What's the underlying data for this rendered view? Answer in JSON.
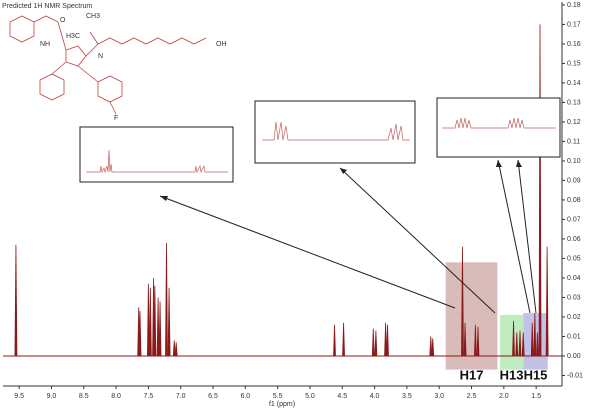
{
  "chart_data": {
    "type": "spectrum",
    "title": "Predicted 1H NMR Spectrum",
    "x_label": "f1 (ppm)",
    "color": "#8b1a1a",
    "xlim": [
      9.75,
      1.1
    ],
    "ylim": [
      -0.0154,
      0.1815
    ],
    "xticks": [
      9.5,
      {
        "value": 9,
        "label": "9.0"
      },
      8.5,
      {
        "value": 8,
        "label": "8.0"
      },
      7.5,
      {
        "value": 7,
        "label": "7.0"
      },
      6.5,
      {
        "value": 6,
        "label": "6.0"
      },
      5.5,
      {
        "value": 5,
        "label": "5.0"
      },
      4.5,
      {
        "value": 4,
        "label": "4.0"
      },
      3.5,
      {
        "value": 3,
        "label": "3.0"
      },
      2.5,
      {
        "value": 2,
        "label": "2.0"
      },
      1.5
    ],
    "yticks": [
      -0.01,
      {
        "value": 0,
        "label": "0.00"
      },
      0.01,
      0.02,
      0.03,
      0.04,
      0.05,
      0.06,
      0.07,
      0.08,
      0.09,
      {
        "value": 0.1,
        "label": "0.10"
      },
      0.11,
      0.12,
      0.13,
      0.14,
      0.15,
      0.16,
      0.17,
      0.18
    ],
    "x": [
      9.55,
      7.65,
      7.63,
      7.5,
      7.47,
      7.42,
      7.4,
      7.35,
      7.32,
      7.22,
      7.18,
      7.1,
      7.07,
      4.62,
      4.48,
      4.02,
      3.98,
      3.83,
      3.8,
      3.13,
      3.1,
      2.64,
      2.6,
      2.44,
      2.4,
      1.85,
      1.8,
      1.75,
      1.7,
      1.56,
      1.52,
      1.48,
      1.44,
      1.33
    ],
    "values": [
      0.057,
      0.025,
      0.023,
      0.037,
      0.035,
      0.04,
      0.036,
      0.03,
      0.028,
      0.058,
      0.035,
      0.008,
      0.007,
      0.016,
      0.017,
      0.014,
      0.013,
      0.017,
      0.016,
      0.01,
      0.009,
      0.056,
      0.017,
      0.016,
      0.015,
      0.018,
      0.012,
      0.013,
      0.012,
      0.017,
      0.022,
      0.012,
      0.17,
      0.056
    ],
    "regions": [
      {
        "label": "H17",
        "x": [
          2.9,
          2.1
        ],
        "y": [
          -0.007,
          0.048
        ],
        "color": "#c9a09c"
      },
      {
        "label": "H13",
        "x": [
          2.06,
          1.7
        ],
        "y": [
          -0.007,
          0.021
        ],
        "color": "#a6e3a6"
      },
      {
        "label": "H15",
        "x": [
          1.7,
          1.32
        ],
        "y": [
          -0.007,
          0.022
        ],
        "color": "#a8a8e0"
      }
    ],
    "annotations": [
      "NH",
      "OH",
      "F",
      "H3C",
      "CH3",
      "O",
      "N"
    ]
  }
}
